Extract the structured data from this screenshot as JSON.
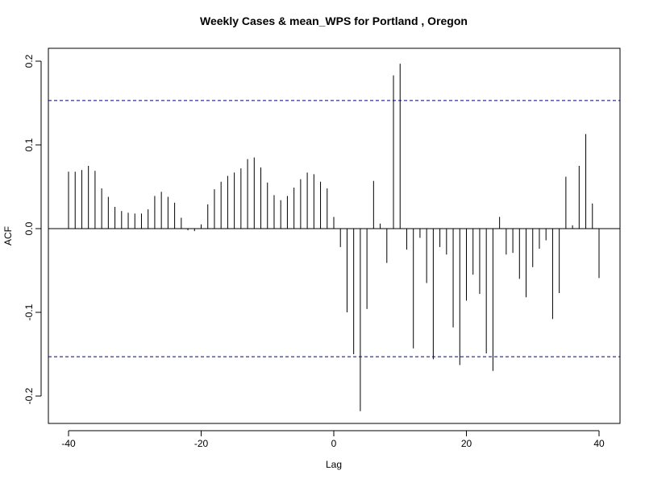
{
  "chart_data": {
    "type": "bar",
    "title": "Weekly Cases & mean_WPS for Portland , Oregon",
    "xlabel": "Lag",
    "ylabel": "ACF",
    "xlim": [
      -40,
      40
    ],
    "ylim": [
      -0.2,
      0.2
    ],
    "x_ticks": [
      "-40",
      "-20",
      "0",
      "20",
      "40"
    ],
    "y_ticks": [
      "-0.2",
      "-0.1",
      "0.0",
      "0.1",
      "0.2"
    ],
    "confidence_bound": 0.153,
    "grid": false,
    "legend": "none",
    "colors": {
      "bars": "#000000",
      "confidence": "#000080",
      "zero_line": "#000000"
    },
    "x": [
      -40,
      -39,
      -38,
      -37,
      -36,
      -35,
      -34,
      -33,
      -32,
      -31,
      -30,
      -29,
      -28,
      -27,
      -26,
      -25,
      -24,
      -23,
      -22,
      -21,
      -20,
      -19,
      -18,
      -17,
      -16,
      -15,
      -14,
      -13,
      -12,
      -11,
      -10,
      -9,
      -8,
      -7,
      -6,
      -5,
      -4,
      -3,
      -2,
      -1,
      0,
      1,
      2,
      3,
      4,
      5,
      6,
      7,
      8,
      9,
      10,
      11,
      12,
      13,
      14,
      15,
      16,
      17,
      18,
      19,
      20,
      21,
      22,
      23,
      24,
      25,
      26,
      27,
      28,
      29,
      30,
      31,
      32,
      33,
      34,
      35,
      36,
      37,
      38,
      39,
      40
    ],
    "values": [
      0.068,
      0.068,
      0.07,
      0.075,
      0.069,
      0.048,
      0.038,
      0.026,
      0.021,
      0.019,
      0.018,
      0.018,
      0.023,
      0.039,
      0.044,
      0.038,
      0.031,
      0.013,
      -0.002,
      -0.003,
      0.005,
      0.029,
      0.047,
      0.056,
      0.063,
      0.067,
      0.072,
      0.083,
      0.085,
      0.073,
      0.055,
      0.04,
      0.034,
      0.039,
      0.049,
      0.059,
      0.067,
      0.065,
      0.056,
      0.048,
      0.014,
      -0.022,
      -0.1,
      -0.15,
      -0.218,
      -0.096,
      0.057,
      0.006,
      -0.041,
      0.183,
      0.197,
      -0.025,
      -0.143,
      -0.011,
      -0.065,
      -0.156,
      -0.022,
      -0.031,
      -0.118,
      -0.163,
      -0.086,
      -0.055,
      -0.078,
      -0.149,
      -0.17,
      0.014,
      -0.031,
      -0.029,
      -0.06,
      -0.082,
      -0.046,
      -0.024,
      -0.014,
      -0.108,
      -0.077,
      0.062,
      0.004,
      0.075,
      0.113,
      0.03,
      -0.059
    ]
  }
}
